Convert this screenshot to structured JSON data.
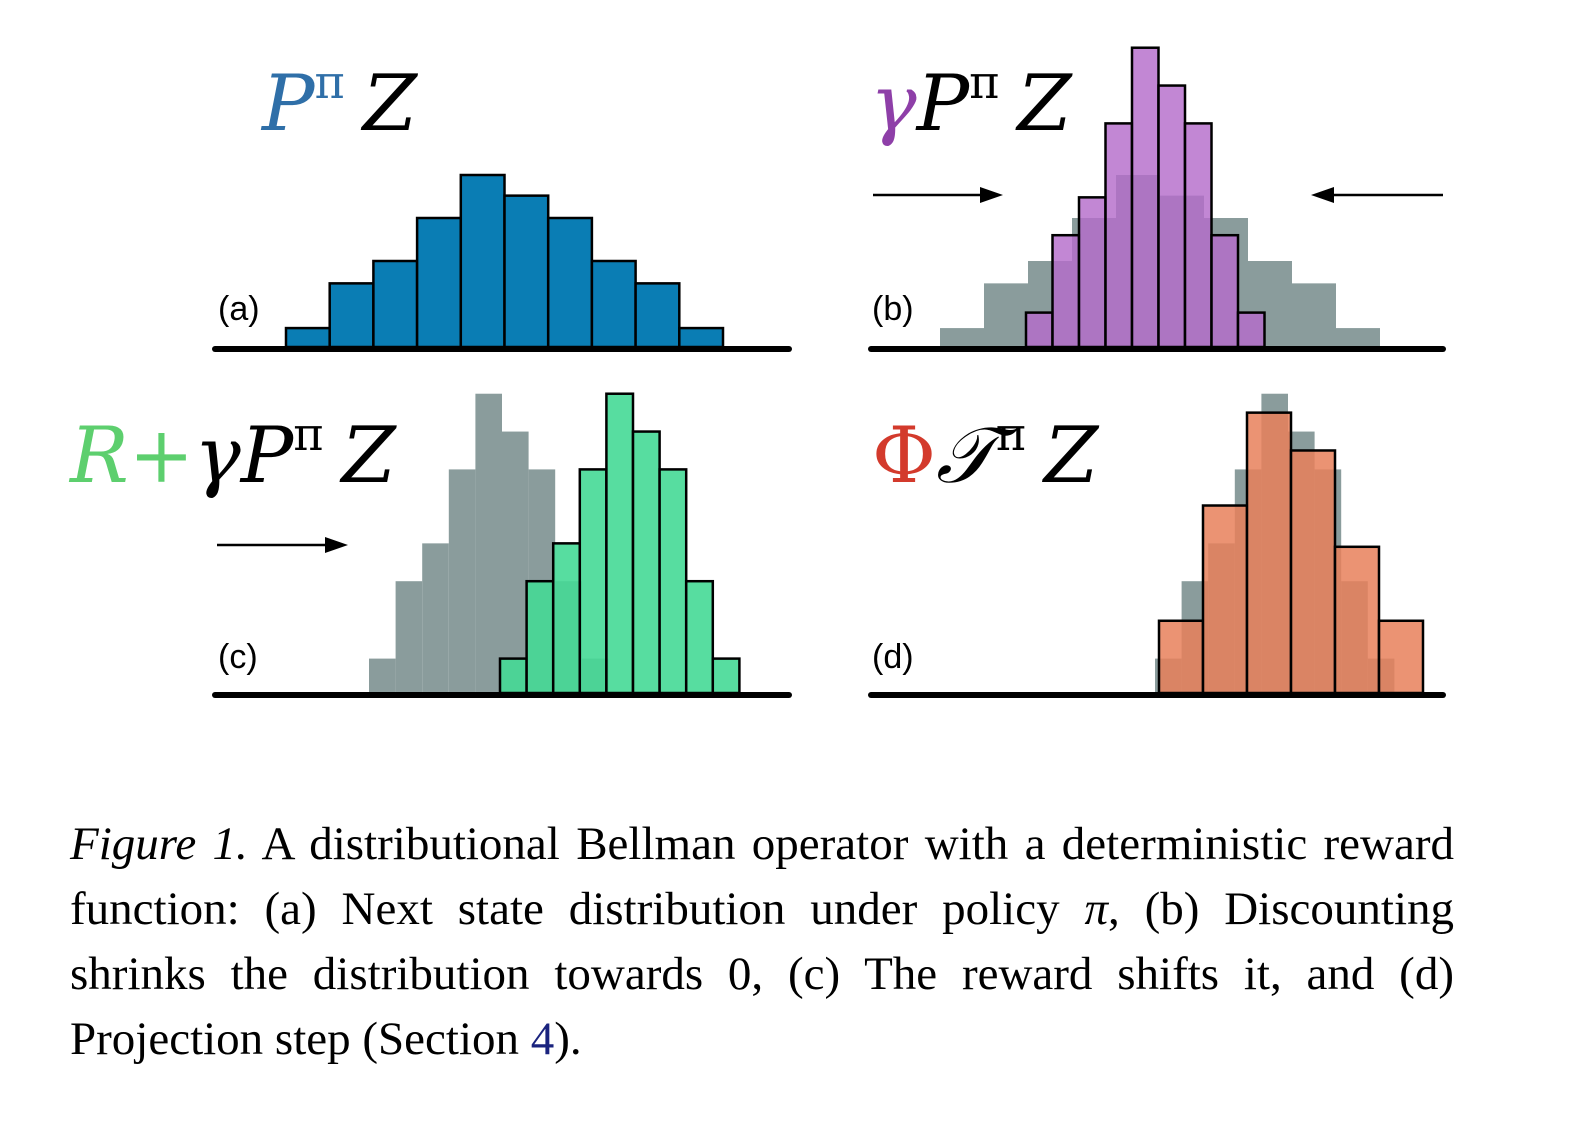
{
  "panels": [
    {
      "id": "a",
      "tag": "(a)",
      "formula": {
        "lead": "",
        "lead_greek": "",
        "base": "P",
        "sup": "π",
        "tail": "Z"
      },
      "colors": {
        "primary": "#0a7db4",
        "formula": "#2f6fa8"
      },
      "gray": [],
      "bars": [
        {
          "x": 0,
          "h": 0.11
        },
        {
          "x": 1,
          "h": 0.37
        },
        {
          "x": 2,
          "h": 0.5
        },
        {
          "x": 3,
          "h": 0.75
        },
        {
          "x": 4,
          "h": 1.0
        },
        {
          "x": 5,
          "h": 0.88
        },
        {
          "x": 6,
          "h": 0.75
        },
        {
          "x": 7,
          "h": 0.5
        },
        {
          "x": 8,
          "h": 0.37
        },
        {
          "x": 9,
          "h": 0.11
        }
      ]
    },
    {
      "id": "b",
      "tag": "(b)",
      "formula": {
        "lead": "",
        "lead_greek": "γ",
        "base": "P",
        "sup": "π",
        "tail": "Z"
      },
      "colors": {
        "primary": "#b56ccb",
        "formula": "#8e3fa8"
      },
      "gray": [
        {
          "x": 0,
          "h": 0.11
        },
        {
          "x": 1,
          "h": 0.37
        },
        {
          "x": 2,
          "h": 0.5
        },
        {
          "x": 3,
          "h": 0.75
        },
        {
          "x": 4,
          "h": 1.0
        },
        {
          "x": 5,
          "h": 0.88
        },
        {
          "x": 6,
          "h": 0.75
        },
        {
          "x": 7,
          "h": 0.5
        },
        {
          "x": 8,
          "h": 0.37
        },
        {
          "x": 9,
          "h": 0.11
        }
      ],
      "bars": [
        {
          "x": 0,
          "h": 0.2
        },
        {
          "x": 1,
          "h": 0.65
        },
        {
          "x": 2,
          "h": 0.87
        },
        {
          "x": 3,
          "h": 1.3
        },
        {
          "x": 4,
          "h": 1.74
        },
        {
          "x": 5,
          "h": 1.52
        },
        {
          "x": 6,
          "h": 1.3
        },
        {
          "x": 7,
          "h": 0.65
        },
        {
          "x": 8,
          "h": 0.2
        }
      ]
    },
    {
      "id": "c",
      "tag": "(c)",
      "formula": {
        "lead": "R+",
        "lead_greek": "γ",
        "base": "P",
        "sup": "π",
        "tail": "Z"
      },
      "colors": {
        "primary": "#45d996",
        "formula": "#5dcf6e"
      },
      "gray": [
        {
          "x": 0,
          "h": 0.2
        },
        {
          "x": 1,
          "h": 0.65
        },
        {
          "x": 2,
          "h": 0.87
        },
        {
          "x": 3,
          "h": 1.3
        },
        {
          "x": 4,
          "h": 1.74
        },
        {
          "x": 5,
          "h": 1.52
        },
        {
          "x": 6,
          "h": 1.3
        },
        {
          "x": 7,
          "h": 0.65
        },
        {
          "x": 8,
          "h": 0.2
        }
      ],
      "bars": [
        {
          "x": 0,
          "h": 0.2
        },
        {
          "x": 1,
          "h": 0.65
        },
        {
          "x": 2,
          "h": 0.87
        },
        {
          "x": 3,
          "h": 1.3
        },
        {
          "x": 4,
          "h": 1.74
        },
        {
          "x": 5,
          "h": 1.52
        },
        {
          "x": 6,
          "h": 1.3
        },
        {
          "x": 7,
          "h": 0.65
        },
        {
          "x": 8,
          "h": 0.2
        }
      ]
    },
    {
      "id": "d",
      "tag": "(d)",
      "formula": {
        "lead": "Φ",
        "lead_greek": "",
        "base": "𝒯",
        "sup": "π",
        "tail": "Z"
      },
      "colors": {
        "primary": "#e8805a",
        "formula": "#d33a2c"
      },
      "gray": [
        {
          "x": 0,
          "h": 0.2
        },
        {
          "x": 1,
          "h": 0.65
        },
        {
          "x": 2,
          "h": 0.87
        },
        {
          "x": 3,
          "h": 1.3
        },
        {
          "x": 4,
          "h": 1.74
        },
        {
          "x": 5,
          "h": 1.52
        },
        {
          "x": 6,
          "h": 1.3
        },
        {
          "x": 7,
          "h": 0.65
        },
        {
          "x": 8,
          "h": 0.2
        }
      ],
      "bars": [
        {
          "x": 0,
          "h": 0.42
        },
        {
          "x": 1,
          "h": 1.09
        },
        {
          "x": 2,
          "h": 1.63
        },
        {
          "x": 3,
          "h": 1.41
        },
        {
          "x": 4,
          "h": 0.85
        },
        {
          "x": 5,
          "h": 0.42
        }
      ]
    }
  ],
  "caption": {
    "label": "Figure 1.",
    "part1": " A distributional Bellman operator with a deterministic reward function:  (a) Next state distribution under policy ",
    "pi": "π",
    "part2": ", (b) Discounting shrinks the distribution towards 0, (c) The reward shifts it, and (d) Projection step (Section ",
    "ref": "4",
    "part3": ")."
  },
  "colors": {
    "gray": "#8a9c9c",
    "axis": "#000000"
  }
}
